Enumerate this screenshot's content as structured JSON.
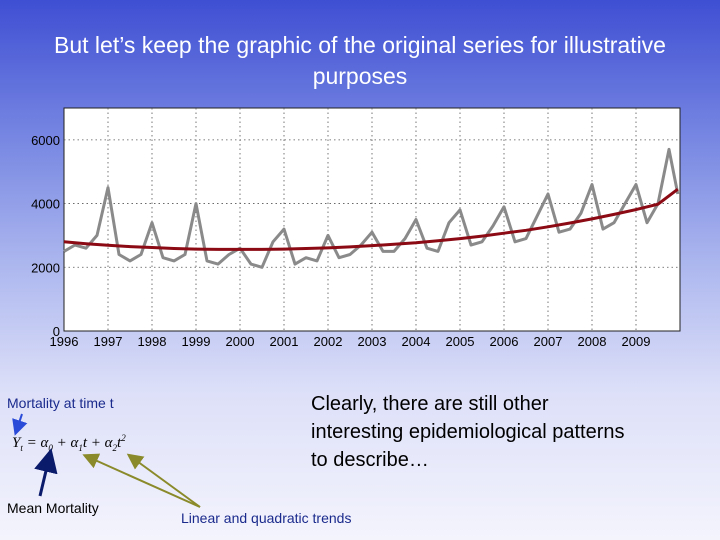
{
  "slide": {
    "title": "But let’s keep the graphic of the original series for illustrative purposes",
    "mortality_label": "Mortality at time t",
    "mean_label": "Mean Mortality",
    "trends_label": "Linear and quadratic trends",
    "body_text": "Clearly, there are still other interesting epidemiological patterns to describe…",
    "formula_text": "Yt = α0 + α1t + α2t²"
  },
  "chart_data": {
    "type": "line",
    "title": "",
    "xlabel": "",
    "ylabel": "",
    "xlim": [
      1996,
      2010
    ],
    "ylim": [
      0,
      7000
    ],
    "x_ticks": [
      "1996",
      "1997",
      "1998",
      "1999",
      "2000",
      "2001",
      "2002",
      "2003",
      "2004",
      "2005",
      "2006",
      "2007",
      "2008",
      "2009"
    ],
    "y_ticks": [
      "0",
      "2000",
      "4000",
      "6000"
    ],
    "grid": true,
    "series": [
      {
        "color": "#8a8a8a",
        "x": [
          1996.0,
          1996.25,
          1996.5,
          1996.75,
          1997.0,
          1997.25,
          1997.5,
          1997.75,
          1998.0,
          1998.25,
          1998.5,
          1998.75,
          1999.0,
          1999.25,
          1999.5,
          1999.75,
          2000.0,
          2000.25,
          2000.5,
          2000.75,
          2001.0,
          2001.25,
          2001.5,
          2001.75,
          2002.0,
          2002.25,
          2002.5,
          2002.75,
          2003.0,
          2003.25,
          2003.5,
          2003.75,
          2004.0,
          2004.25,
          2004.5,
          2004.75,
          2005.0,
          2005.25,
          2005.5,
          2005.75,
          2006.0,
          2006.25,
          2006.5,
          2006.75,
          2007.0,
          2007.25,
          2007.5,
          2007.75,
          2008.0,
          2008.25,
          2008.5,
          2008.75,
          2009.0,
          2009.25,
          2009.5,
          2009.75,
          2009.95
        ],
        "values": [
          2500,
          2700,
          2600,
          3000,
          4500,
          2400,
          2200,
          2400,
          3400,
          2300,
          2200,
          2400,
          4000,
          2200,
          2100,
          2400,
          2600,
          2100,
          2000,
          2800,
          3200,
          2100,
          2300,
          2200,
          3000,
          2300,
          2400,
          2700,
          3100,
          2500,
          2500,
          2900,
          3500,
          2600,
          2500,
          3400,
          3800,
          2700,
          2800,
          3300,
          3900,
          2800,
          2900,
          3600,
          4300,
          3100,
          3200,
          3700,
          4600,
          3200,
          3400,
          4000,
          4600,
          3400,
          4000,
          5700,
          4300
        ]
      },
      {
        "color": "#8b0a14",
        "x": [
          1996.0,
          1996.5,
          1997.0,
          1997.5,
          1998.0,
          1998.5,
          1999.0,
          1999.5,
          2000.0,
          2000.5,
          2001.0,
          2001.5,
          2002.0,
          2002.5,
          2003.0,
          2003.5,
          2004.0,
          2004.5,
          2005.0,
          2005.5,
          2006.0,
          2006.5,
          2007.0,
          2007.5,
          2008.0,
          2008.5,
          2009.0,
          2009.5,
          2009.95
        ],
        "values": [
          2800,
          2740,
          2690,
          2650,
          2620,
          2590,
          2570,
          2560,
          2560,
          2560,
          2570,
          2590,
          2610,
          2640,
          2680,
          2720,
          2770,
          2830,
          2900,
          2980,
          3070,
          3160,
          3270,
          3390,
          3520,
          3660,
          3810,
          3980,
          4450
        ]
      }
    ]
  }
}
